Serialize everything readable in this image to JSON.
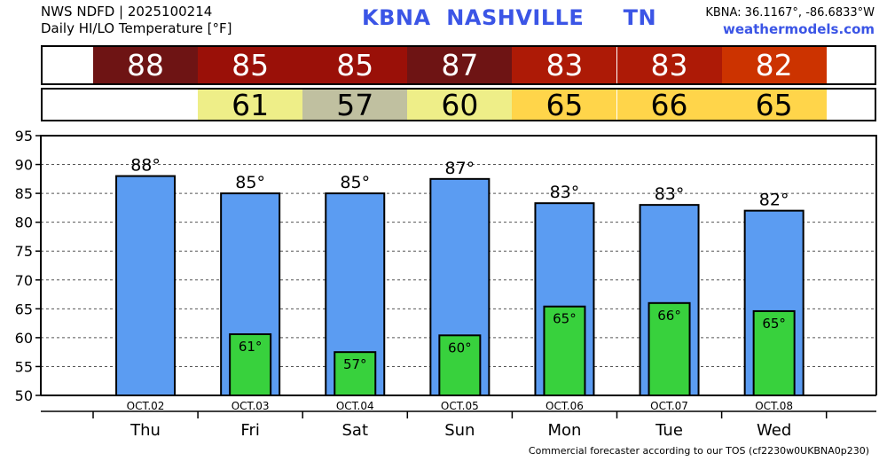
{
  "header": {
    "source": "NWS NDFD | 2025100214",
    "product": "Daily HI/LO Temperature [°F]",
    "station_id": "KBNA",
    "city": "NASHVILLE",
    "state": "TN",
    "coords": "KBNA: 36.1167°, -86.6833°W",
    "website": "weathermodels.com"
  },
  "hi_band": [
    {
      "text": "88",
      "color": "#6e1414"
    },
    {
      "text": "85",
      "color": "#9a1008"
    },
    {
      "text": "85",
      "color": "#9a1008"
    },
    {
      "text": "87",
      "color": "#6e1414"
    },
    {
      "text": "83",
      "color": "#ad1a06"
    },
    {
      "text": "83",
      "color": "#ad1a06"
    },
    {
      "text": "82",
      "color": "#cc3300"
    }
  ],
  "lo_band": [
    {
      "text": "",
      "color": "#ffffff"
    },
    {
      "text": "61",
      "color": "#eeee88"
    },
    {
      "text": "57",
      "color": "#c0c0a0"
    },
    {
      "text": "60",
      "color": "#eeee88"
    },
    {
      "text": "65",
      "color": "#ffd54a"
    },
    {
      "text": "66",
      "color": "#ffd54a"
    },
    {
      "text": "65",
      "color": "#ffd54a"
    }
  ],
  "chart_data": {
    "type": "bar",
    "categories": [
      "Thu",
      "Fri",
      "Sat",
      "Sun",
      "Mon",
      "Tue",
      "Wed"
    ],
    "dates": [
      "OCT.02",
      "OCT.03",
      "OCT.04",
      "OCT.05",
      "OCT.06",
      "OCT.07",
      "OCT.08"
    ],
    "series": [
      {
        "values": [
          88,
          85,
          85,
          87.5,
          83.3,
          83,
          82
        ],
        "labels": [
          "88°",
          "85°",
          "85°",
          "87°",
          "83°",
          "83°",
          "82°"
        ],
        "color": "#5b9cf2"
      },
      {
        "values": [
          null,
          60.6,
          57.5,
          60.4,
          65.4,
          66,
          64.6
        ],
        "labels": [
          "",
          "61°",
          "57°",
          "60°",
          "65°",
          "66°",
          "65°"
        ],
        "color": "#38d13d"
      }
    ],
    "ylim": [
      50,
      95
    ],
    "yticks": [
      50,
      55,
      60,
      65,
      70,
      75,
      80,
      85,
      90,
      95
    ],
    "grid": true
  },
  "footer": {
    "text": "Commercial forecaster according to our TOS (cf2230w0UKBNA0p230)"
  }
}
